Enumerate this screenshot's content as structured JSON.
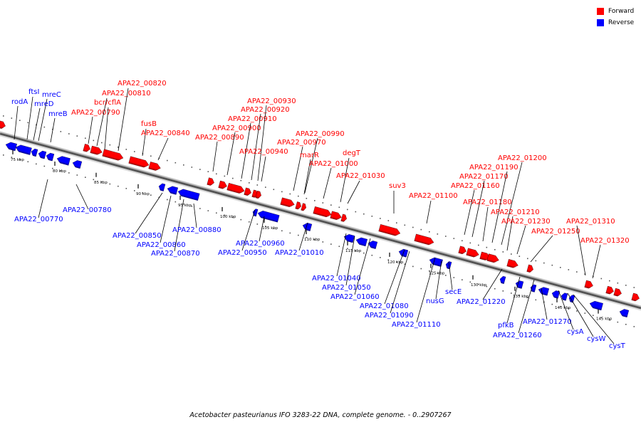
{
  "legend": {
    "forward": {
      "label": "Forward",
      "color": "#ff0000"
    },
    "reverse": {
      "label": "Reverse",
      "color": "#0000ff"
    }
  },
  "caption": "Acetobacter pasteurianus IFO 3283-22 DNA, complete genome. - 0..2907267",
  "backbone": {
    "start_kbp": 71,
    "end_kbp": 150
  },
  "ticks": [
    "75 kbp",
    "80 kbp",
    "85 kbp",
    "90 kbp",
    "95 kbp",
    "100 kbp",
    "105 kbp",
    "110 kbp",
    "115 kbp",
    "120 kbp",
    "125 kbp",
    "130 kbp",
    "135 kbp",
    "140 kbp",
    "145 kbp"
  ],
  "forward_genes": [
    "APA22_00790",
    "APA22_00810",
    "APA22_00820",
    "bcr/cflA",
    "fusB",
    "APA22_00840",
    "APA22_00890",
    "APA22_00900",
    "APA22_00910",
    "APA22_00920",
    "APA22_00930",
    "APA22_00940",
    "APA22_00970",
    "APA22_00990",
    "marR",
    "APA22_01000",
    "degT",
    "APA22_01030",
    "suv3",
    "APA22_01100",
    "APA22_01160",
    "APA22_01170",
    "APA22_01180",
    "APA22_01190",
    "APA22_01200",
    "APA22_01210",
    "APA22_01230",
    "APA22_01250",
    "APA22_01310",
    "APA22_01320"
  ],
  "reverse_genes": [
    "rodA",
    "ftsI",
    "mreC",
    "mreD",
    "mreB",
    "APA22_00770",
    "APA22_00780",
    "APA22_00850",
    "APA22_00860",
    "APA22_00870",
    "APA22_00880",
    "APA22_00950",
    "APA22_00960",
    "APA22_01010",
    "APA22_01040",
    "APA22_01050",
    "APA22_01060",
    "APA22_01080",
    "APA22_01090",
    "APA22_01110",
    "nusG",
    "secE",
    "APA22_01220",
    "pfkB",
    "APA22_01260",
    "APA22_01270",
    "cysA",
    "cysW",
    "cysT"
  ]
}
